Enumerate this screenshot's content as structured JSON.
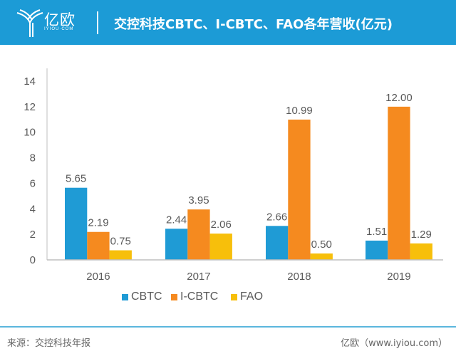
{
  "header": {
    "brand": "亿欧",
    "brand_sub": "IYIOU·COM",
    "title": "交控科技CBTC、I-CBTC、FAO各年营收(亿元)",
    "color": "#1c9bd6"
  },
  "chart_data": {
    "type": "bar",
    "title": "交控科技CBTC、I-CBTC、FAO各年营收(亿元)",
    "xlabel": "",
    "ylabel": "",
    "categories": [
      "2016",
      "2017",
      "2018",
      "2019"
    ],
    "series": [
      {
        "name": "CBTC",
        "color": "#1f9bd5",
        "values": [
          5.65,
          2.44,
          2.66,
          1.51
        ],
        "labels": [
          "5.65",
          "2.44",
          "2.66",
          "1.51"
        ]
      },
      {
        "name": "I-CBTC",
        "color": "#f58a1f",
        "values": [
          2.19,
          3.95,
          10.99,
          12.0
        ],
        "labels": [
          "2.19",
          "3.95",
          "10.99",
          "12.00"
        ]
      },
      {
        "name": "FAO",
        "color": "#f7bf0b",
        "values": [
          0.75,
          2.06,
          0.5,
          1.29
        ],
        "labels": [
          "0.75",
          "2.06",
          "0.50",
          "1.29"
        ]
      }
    ],
    "ylim": [
      0,
      14
    ],
    "yticks": [
      "0",
      "2",
      "4",
      "6",
      "8",
      "10",
      "12",
      "14"
    ],
    "grid": false,
    "legend": "bottom"
  },
  "footer": {
    "source": "来源：交控科技年报",
    "credit": "亿欧（www.iyiou.com）"
  }
}
